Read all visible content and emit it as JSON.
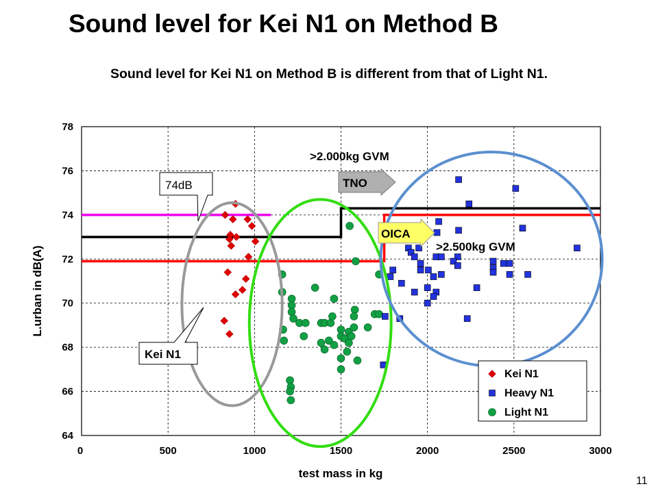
{
  "slide": {
    "title": "Sound level for Kei N1 on Method B",
    "subtitle": "Sound level for Kei N1 on Method B is different from that of Light N1.",
    "page_number": "11"
  },
  "colors": {
    "kei": "#e00000",
    "heavy": "#2233dd",
    "light": "#11a044",
    "limit_red": "#ff0000",
    "limit_black": "#000000",
    "limit_magenta": "#ee00ee",
    "ellipse_kei": "#999999",
    "ellipse_light": "#33dd11",
    "ellipse_heavy": "#5b8fd0",
    "callout_fill": "#b0b0b0"
  },
  "chart_data": {
    "type": "scatter",
    "title": "",
    "xlabel": "test mass in kg",
    "ylabel": "L.urban in dB(A)",
    "xlim": [
      0,
      3000
    ],
    "ylim": [
      64,
      78
    ],
    "x_ticks": [
      0,
      500,
      1000,
      1500,
      2000,
      2500,
      3000
    ],
    "y_ticks": [
      64,
      66,
      68,
      70,
      72,
      74,
      76,
      78
    ],
    "grid": "dashed",
    "legend": "bottom-right",
    "series": [
      {
        "name": "Kei N1",
        "marker": "diamond",
        "color": "#e00000",
        "points": [
          [
            890,
            74.5
          ],
          [
            830,
            74.0
          ],
          [
            875,
            73.8
          ],
          [
            960,
            73.8
          ],
          [
            985,
            73.5
          ],
          [
            860,
            73.1
          ],
          [
            855,
            72.9
          ],
          [
            895,
            73.0
          ],
          [
            865,
            72.6
          ],
          [
            1005,
            72.8
          ],
          [
            965,
            72.1
          ],
          [
            845,
            71.4
          ],
          [
            950,
            71.1
          ],
          [
            930,
            70.6
          ],
          [
            890,
            70.4
          ],
          [
            825,
            69.2
          ],
          [
            855,
            68.6
          ]
        ]
      },
      {
        "name": "Heavy N1",
        "marker": "square",
        "color": "#2233dd",
        "points": [
          [
            2180,
            75.6
          ],
          [
            2510,
            75.2
          ],
          [
            2240,
            74.5
          ],
          [
            2065,
            73.7
          ],
          [
            2180,
            73.3
          ],
          [
            2550,
            73.4
          ],
          [
            2055,
            73.2
          ],
          [
            1890,
            72.5
          ],
          [
            1950,
            72.5
          ],
          [
            1905,
            72.3
          ],
          [
            1925,
            72.1
          ],
          [
            2050,
            72.1
          ],
          [
            2080,
            72.1
          ],
          [
            2175,
            72.1
          ],
          [
            2150,
            71.9
          ],
          [
            2380,
            71.9
          ],
          [
            1960,
            71.8
          ],
          [
            2440,
            71.8
          ],
          [
            2475,
            71.8
          ],
          [
            1960,
            71.5
          ],
          [
            2175,
            71.7
          ],
          [
            2380,
            71.6
          ],
          [
            2005,
            71.5
          ],
          [
            1800,
            71.5
          ],
          [
            1785,
            71.2
          ],
          [
            2035,
            71.2
          ],
          [
            2080,
            71.3
          ],
          [
            2380,
            71.4
          ],
          [
            2475,
            71.3
          ],
          [
            2580,
            71.3
          ],
          [
            2865,
            72.5
          ],
          [
            1850,
            70.9
          ],
          [
            2000,
            70.7
          ],
          [
            2285,
            70.7
          ],
          [
            1925,
            70.5
          ],
          [
            2050,
            70.5
          ],
          [
            2035,
            70.3
          ],
          [
            2000,
            70.0
          ],
          [
            2230,
            69.3
          ],
          [
            1840,
            69.3
          ],
          [
            1755,
            69.4
          ],
          [
            1745,
            67.2
          ]
        ]
      },
      {
        "name": "Light N1",
        "marker": "circle",
        "color": "#11a044",
        "points": [
          [
            1550,
            73.5
          ],
          [
            1585,
            71.9
          ],
          [
            1720,
            71.3
          ],
          [
            1160,
            71.3
          ],
          [
            1160,
            70.5
          ],
          [
            1350,
            70.7
          ],
          [
            1215,
            70.2
          ],
          [
            1460,
            70.2
          ],
          [
            1215,
            69.9
          ],
          [
            1215,
            69.6
          ],
          [
            1580,
            69.7
          ],
          [
            1260,
            69.1
          ],
          [
            1295,
            69.1
          ],
          [
            1385,
            69.1
          ],
          [
            1405,
            69.1
          ],
          [
            1440,
            69.1
          ],
          [
            1225,
            69.3
          ],
          [
            1450,
            69.4
          ],
          [
            1575,
            69.4
          ],
          [
            1695,
            69.5
          ],
          [
            1720,
            69.5
          ],
          [
            1165,
            68.8
          ],
          [
            1500,
            68.8
          ],
          [
            1545,
            68.7
          ],
          [
            1575,
            68.9
          ],
          [
            1655,
            68.9
          ],
          [
            1500,
            68.5
          ],
          [
            1560,
            68.5
          ],
          [
            1285,
            68.5
          ],
          [
            1170,
            68.3
          ],
          [
            1385,
            68.2
          ],
          [
            1430,
            68.3
          ],
          [
            1520,
            68.4
          ],
          [
            1545,
            68.2
          ],
          [
            1460,
            68.1
          ],
          [
            1405,
            67.9
          ],
          [
            1535,
            67.8
          ],
          [
            1500,
            67.5
          ],
          [
            1595,
            67.4
          ],
          [
            1500,
            67.0
          ],
          [
            1205,
            66.5
          ],
          [
            1210,
            66.2
          ],
          [
            1205,
            66.0
          ],
          [
            1210,
            65.6
          ]
        ]
      }
    ],
    "limit_lines": [
      {
        "name": "TNO",
        "color": "#ff0000",
        "points": [
          [
            0,
            71.9
          ],
          [
            1750,
            71.9
          ],
          [
            1750,
            74.0
          ],
          [
            3000,
            74.0
          ]
        ]
      },
      {
        "name": "OICA",
        "color": "#000000",
        "points": [
          [
            0,
            73.0
          ],
          [
            1500,
            73.0
          ],
          [
            1500,
            74.3
          ],
          [
            3000,
            74.3
          ]
        ]
      },
      {
        "name": "74dB",
        "color": "#ee00ee",
        "points": [
          [
            0,
            74.0
          ],
          [
            1095,
            74.0
          ]
        ]
      }
    ],
    "group_ellipses": [
      {
        "name": "Kei N1",
        "color": "#999999",
        "center": [
          870,
          69.95
        ],
        "radii": [
          290,
          4.6
        ]
      },
      {
        "name": "Light N1",
        "color": "#33dd11",
        "center": [
          1380,
          69.1
        ],
        "radii": [
          410,
          5.6
        ]
      },
      {
        "name": "Heavy N1",
        "color": "#5b8fd0",
        "center": [
          2370,
          72.0
        ],
        "radii": [
          640,
          4.85
        ]
      }
    ],
    "annotations": {
      "gvm_2000": ">2.000kg GVM",
      "gvm_2500": ">2.500kg GVM",
      "tno_arrow": "TNO",
      "oica_arrow": "OICA",
      "limit_callout": "74dB",
      "kei_callout": "Kei N1"
    }
  }
}
